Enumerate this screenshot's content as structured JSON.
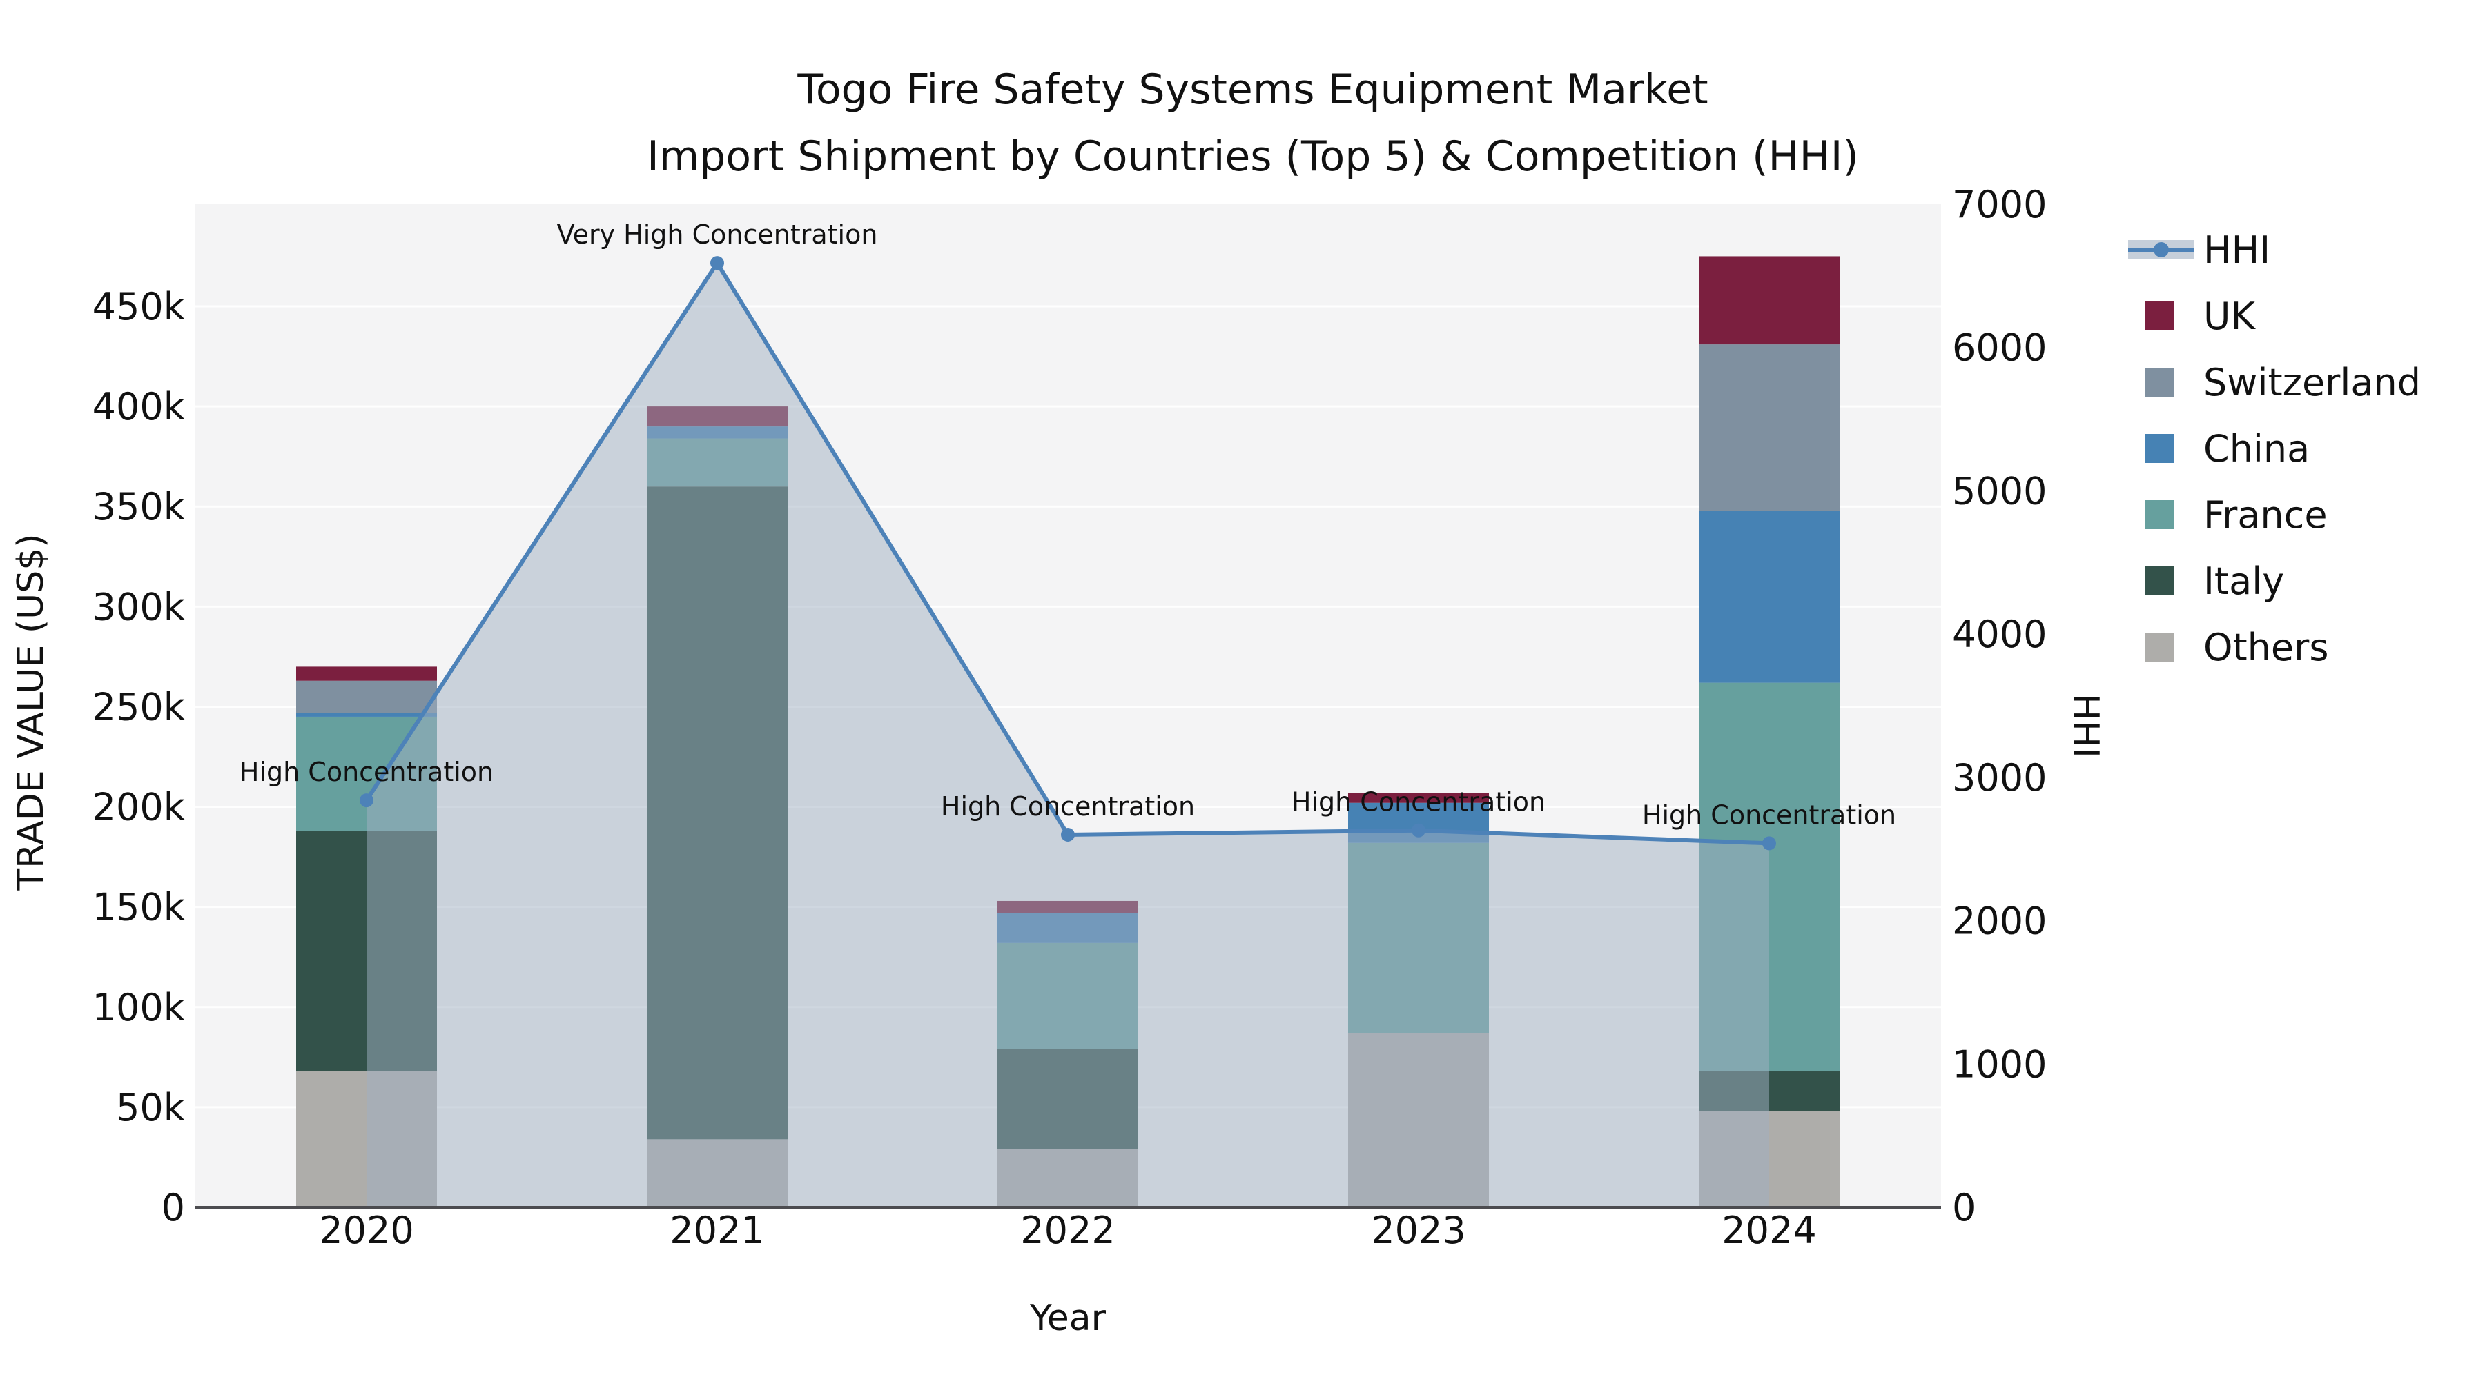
{
  "title": {
    "line1": "Togo Fire Safety Systems Equipment Market",
    "line2": "Import Shipment by Countries (Top 5) & Competition (HHI)"
  },
  "axes": {
    "y_left": {
      "label": "TRADE VALUE (US$)",
      "ticks": [
        {
          "label": "0",
          "value": 0
        },
        {
          "label": "50k",
          "value": 50000
        },
        {
          "label": "100k",
          "value": 100000
        },
        {
          "label": "150k",
          "value": 150000
        },
        {
          "label": "200k",
          "value": 200000
        },
        {
          "label": "250k",
          "value": 250000
        },
        {
          "label": "300k",
          "value": 300000
        },
        {
          "label": "350k",
          "value": 350000
        },
        {
          "label": "400k",
          "value": 400000
        },
        {
          "label": "450k",
          "value": 450000
        }
      ]
    },
    "y_right": {
      "label": "HHI",
      "ticks": [
        {
          "label": "0",
          "value": 0
        },
        {
          "label": "1000",
          "value": 1000
        },
        {
          "label": "2000",
          "value": 2000
        },
        {
          "label": "3000",
          "value": 3000
        },
        {
          "label": "4000",
          "value": 4000
        },
        {
          "label": "5000",
          "value": 5000
        },
        {
          "label": "6000",
          "value": 6000
        },
        {
          "label": "7000",
          "value": 7000
        }
      ]
    },
    "x": {
      "label": "Year",
      "ticks": [
        "2020",
        "2021",
        "2022",
        "2023",
        "2024"
      ]
    }
  },
  "legend": {
    "entries": [
      {
        "label": "HHI",
        "type": "line",
        "color": "#4d82b8",
        "band_color": "#c6cfda"
      },
      {
        "label": "UK",
        "type": "swatch",
        "color": "#7b1f3f"
      },
      {
        "label": "Switzerland",
        "type": "swatch",
        "color": "#7f90a0"
      },
      {
        "label": "China",
        "type": "swatch",
        "color": "#4682b4"
      },
      {
        "label": "France",
        "type": "swatch",
        "color": "#66a09e"
      },
      {
        "label": "Italy",
        "type": "swatch",
        "color": "#33524a"
      },
      {
        "label": "Others",
        "type": "swatch",
        "color": "#aeadaa"
      }
    ]
  },
  "annotations": [
    {
      "year": "2020",
      "text": "High Concentration"
    },
    {
      "year": "2021",
      "text": "Very High Concentration"
    },
    {
      "year": "2022",
      "text": "High Concentration"
    },
    {
      "year": "2023",
      "text": "High Concentration"
    },
    {
      "year": "2024",
      "text": "High Concentration"
    }
  ],
  "chart_data": {
    "type": "combo-stacked-bar-with-line",
    "x": [
      "2020",
      "2021",
      "2022",
      "2023",
      "2024"
    ],
    "bar_unit": "US$",
    "bar_stack_order_bottom_to_top": [
      "Others",
      "Italy",
      "France",
      "China",
      "Switzerland",
      "UK"
    ],
    "bar_series": [
      {
        "name": "Others",
        "color": "#aeadaa",
        "values": [
          68000,
          34000,
          29000,
          87000,
          48000
        ]
      },
      {
        "name": "Italy",
        "color": "#33524a",
        "values": [
          120000,
          326000,
          50000,
          0,
          20000
        ]
      },
      {
        "name": "France",
        "color": "#66a09e",
        "values": [
          57000,
          24000,
          53000,
          95000,
          194000
        ]
      },
      {
        "name": "China",
        "color": "#4682b4",
        "values": [
          2000,
          6000,
          15000,
          20000,
          86000
        ]
      },
      {
        "name": "Switzerland",
        "color": "#7f90a0",
        "values": [
          16000,
          0,
          0,
          0,
          83000
        ]
      },
      {
        "name": "UK",
        "color": "#7b1f3f",
        "values": [
          7000,
          10000,
          6000,
          5000,
          44000
        ]
      }
    ],
    "bar_totals": [
      270000,
      400000,
      153000,
      207000,
      475000
    ],
    "line_series": {
      "name": "HHI",
      "axis": "right",
      "color": "#4d82b8",
      "area_color": "#9fb0c2",
      "values": [
        2840,
        6590,
        2600,
        2630,
        2540
      ]
    },
    "ylim_left": [
      0,
      501000
    ],
    "ylim_right": [
      0,
      7000
    ],
    "grid": "horizontal, every 50k on left axis",
    "legend_position": "right"
  }
}
